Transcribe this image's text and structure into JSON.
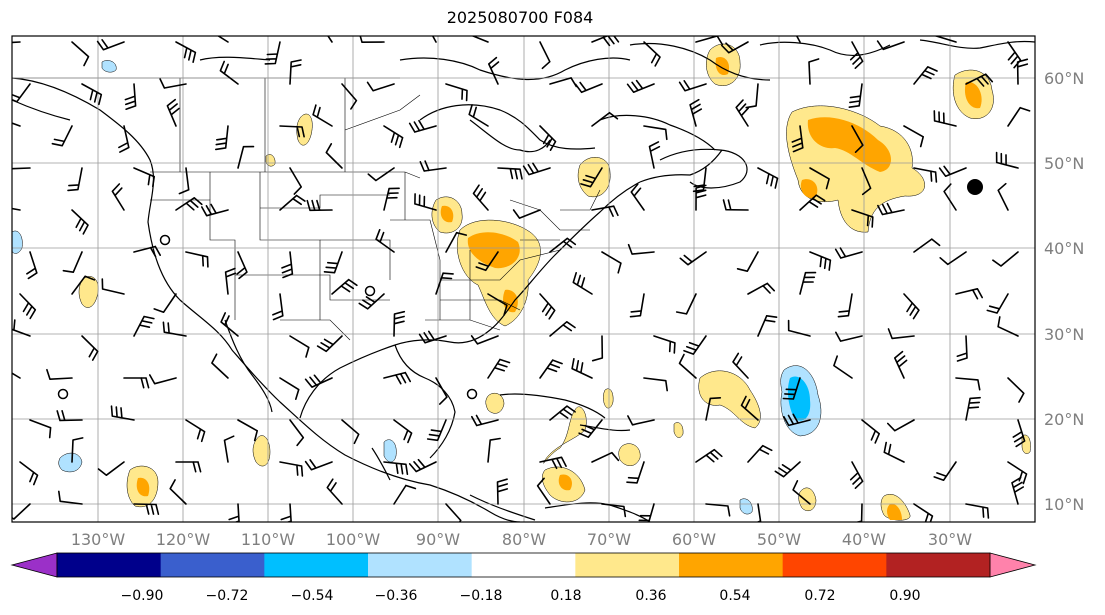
{
  "title": "2025080700 F084",
  "map": {
    "lat_labels": [
      "60°N",
      "50°N",
      "40°N",
      "30°N",
      "20°N",
      "10°N"
    ],
    "lon_labels": [
      "130°W",
      "120°W",
      "110°W",
      "100°W",
      "90°W",
      "80°W",
      "70°W",
      "60°W",
      "50°W",
      "40°W",
      "30°W"
    ],
    "lat_values": [
      60,
      50,
      40,
      30,
      20,
      10
    ],
    "lon_values": [
      -130,
      -120,
      -110,
      -100,
      -90,
      -80,
      -70,
      -60,
      -50,
      -40,
      -30
    ]
  },
  "colorbar": {
    "ticks": [
      "−0.90",
      "−0.72",
      "−0.54",
      "−0.36",
      "−0.18",
      "0.18",
      "0.36",
      "0.54",
      "0.72",
      "0.90"
    ],
    "colors": [
      "#9b30c8",
      "#00008b",
      "#3a5fcd",
      "#00bfff",
      "#b0e2ff",
      "#ffffff",
      "#ffe88c",
      "#ffa500",
      "#ff4500",
      "#b22222",
      "#ff82ab"
    ]
  }
}
